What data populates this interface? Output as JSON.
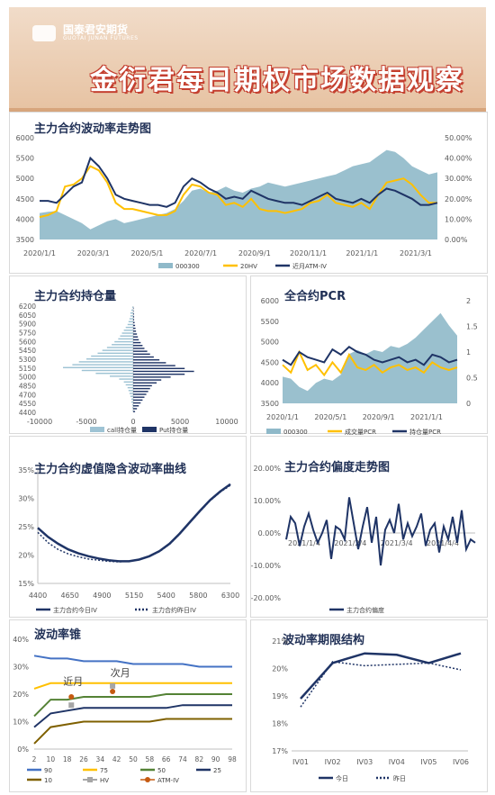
{
  "header": {
    "logo_text": "国泰君安期货",
    "logo_sub": "GUOTAI JUNAN FUTURES",
    "title": "金衍君每日期权市场数据观察"
  },
  "colors": {
    "navy": "#1f3466",
    "gold": "#ffc000",
    "teal": "#8fb9c9",
    "lightblue": "#9ec3d4",
    "gray": "#a6a6a6",
    "orange": "#c55a11",
    "olive": "#7f6000",
    "green": "#548235",
    "blue": "#4472c4",
    "darkgray": "#7f7f7f"
  },
  "chart_data": [
    {
      "id": "vol-trend",
      "type": "line",
      "title": "主力合约波动率走势图",
      "x_ticks": [
        "2020/1/1",
        "2020/3/1",
        "2020/5/1",
        "2020/7/1",
        "2020/9/1",
        "2020/11/1",
        "2021/1/1",
        "2021/3/1"
      ],
      "y_left_ticks": [
        "3500",
        "4000",
        "4500",
        "5000",
        "5500",
        "6000"
      ],
      "y_left_range": [
        3500,
        6000
      ],
      "y_right_ticks": [
        "0.00%",
        "10.00%",
        "20.00%",
        "30.00%",
        "40.00%",
        "50.00%"
      ],
      "y_right_range": [
        0,
        0.5
      ],
      "legend": [
        "000300",
        "20HV",
        "近月ATM-IV"
      ],
      "series_000300": [
        4150,
        4180,
        4200,
        4100,
        4000,
        3900,
        3750,
        3850,
        3950,
        4000,
        3900,
        3950,
        4000,
        4050,
        4100,
        4150,
        4250,
        4450,
        4700,
        4750,
        4650,
        4700,
        4800,
        4700,
        4650,
        4750,
        4800,
        4900,
        4850,
        4800,
        4850,
        4900,
        4950,
        5000,
        5050,
        5100,
        5200,
        5300,
        5350,
        5400,
        5550,
        5700,
        5650,
        5500,
        5300,
        5200,
        5100,
        5150
      ],
      "series_20hv": [
        0.11,
        0.12,
        0.14,
        0.26,
        0.27,
        0.3,
        0.36,
        0.34,
        0.28,
        0.18,
        0.15,
        0.15,
        0.14,
        0.13,
        0.12,
        0.12,
        0.14,
        0.22,
        0.27,
        0.26,
        0.23,
        0.22,
        0.17,
        0.18,
        0.16,
        0.2,
        0.15,
        0.14,
        0.14,
        0.13,
        0.14,
        0.15,
        0.18,
        0.19,
        0.22,
        0.18,
        0.17,
        0.16,
        0.18,
        0.15,
        0.22,
        0.28,
        0.29,
        0.3,
        0.27,
        0.22,
        0.18,
        0.18
      ],
      "series_atm_iv": [
        0.19,
        0.19,
        0.18,
        0.22,
        0.26,
        0.28,
        0.4,
        0.36,
        0.3,
        0.22,
        0.2,
        0.19,
        0.18,
        0.17,
        0.17,
        0.16,
        0.18,
        0.26,
        0.3,
        0.28,
        0.25,
        0.23,
        0.2,
        0.21,
        0.2,
        0.24,
        0.22,
        0.2,
        0.19,
        0.18,
        0.18,
        0.17,
        0.19,
        0.21,
        0.23,
        0.2,
        0.19,
        0.18,
        0.2,
        0.18,
        0.22,
        0.25,
        0.24,
        0.22,
        0.2,
        0.17,
        0.17,
        0.18
      ]
    },
    {
      "id": "open-interest",
      "type": "bar",
      "title": "主力合约持仓量",
      "categories": [
        "6200",
        "5900",
        "5600",
        "5300",
        "5000",
        "4700",
        "4450"
      ],
      "y_tick_labels": [
        "6200",
        "6050",
        "5900",
        "5750",
        "5600",
        "5450",
        "5300",
        "5150",
        "5000",
        "4850",
        "4700",
        "4550",
        "4400"
      ],
      "x_ticks": [
        "-10000",
        "-5000",
        "0",
        "5000",
        "10000"
      ],
      "x_range": [
        -10000,
        10000
      ],
      "strikes": [
        6200,
        6150,
        6100,
        6050,
        6000,
        5950,
        5900,
        5850,
        5800,
        5750,
        5700,
        5650,
        5600,
        5550,
        5500,
        5450,
        5400,
        5350,
        5300,
        5250,
        5200,
        5150,
        5100,
        5050,
        5000,
        4950,
        4900,
        4850,
        4800,
        4750,
        4700,
        4650,
        4600,
        4550,
        4500,
        4450,
        4400
      ],
      "call_oi": [
        -100,
        -200,
        -300,
        -300,
        -400,
        -500,
        -600,
        -800,
        -1000,
        -1200,
        -1400,
        -1600,
        -2000,
        -2300,
        -2800,
        -3300,
        -3800,
        -4500,
        -5000,
        -5800,
        -6500,
        -7500,
        -5500,
        -4000,
        -2500,
        -1500,
        -1000,
        -800,
        -600,
        -500,
        -400,
        -300,
        -200,
        -200,
        -100,
        -100,
        -50
      ],
      "put_oi": [
        50,
        50,
        80,
        100,
        100,
        150,
        200,
        250,
        300,
        400,
        500,
        600,
        800,
        1000,
        1200,
        1500,
        1800,
        2200,
        2800,
        3500,
        4500,
        5500,
        6500,
        5500,
        4000,
        3000,
        2500,
        2000,
        1800,
        1600,
        1400,
        1200,
        1000,
        800,
        600,
        400,
        200
      ],
      "legend": [
        "call持仓量",
        "Put持仓量"
      ]
    },
    {
      "id": "pcr",
      "type": "line",
      "title": "全合约PCR",
      "x_ticks": [
        "2020/1/1",
        "2020/5/1",
        "2020/9/1",
        "2021/1/1"
      ],
      "y_left_ticks": [
        "3500",
        "4000",
        "4500",
        "5000",
        "5500",
        "6000"
      ],
      "y_left_range": [
        3500,
        6000
      ],
      "y_right_ticks": [
        "0",
        "0.5",
        "1",
        "1.5",
        "2"
      ],
      "y_right_range": [
        0,
        2
      ],
      "legend": [
        "000300",
        "成交量PCR",
        "持仓量PCR"
      ],
      "series_000300": [
        4150,
        4100,
        3900,
        3800,
        4000,
        4100,
        4050,
        4200,
        4700,
        4800,
        4700,
        4800,
        4750,
        4900,
        4850,
        4950,
        5100,
        5300,
        5500,
        5700,
        5400,
        5150
      ],
      "series_vol_pcr": [
        0.75,
        0.6,
        1.0,
        0.65,
        0.75,
        0.55,
        0.8,
        0.6,
        0.95,
        0.7,
        0.65,
        0.75,
        0.6,
        0.7,
        0.75,
        0.65,
        0.7,
        0.6,
        0.8,
        0.7,
        0.65,
        0.7
      ],
      "series_oi_pcr": [
        0.85,
        0.75,
        1.0,
        0.9,
        0.85,
        0.8,
        1.05,
        0.95,
        1.1,
        1.0,
        0.95,
        0.85,
        0.8,
        0.85,
        0.9,
        0.8,
        0.85,
        0.75,
        0.95,
        0.9,
        0.8,
        0.85
      ]
    },
    {
      "id": "iv-smile",
      "type": "line",
      "title": "主力合约虚值隐含波动率曲线",
      "x_ticks": [
        "4400",
        "4650",
        "4900",
        "5150",
        "5400",
        "5800",
        "6300"
      ],
      "y_ticks": [
        "15%",
        "20%",
        "25%",
        "30%",
        "35%"
      ],
      "y_range": [
        0.15,
        0.35
      ],
      "x": [
        4400,
        4500,
        4600,
        4700,
        4800,
        4900,
        5000,
        5100,
        5200,
        5300,
        5400,
        5500,
        5600,
        5700,
        5800,
        5900,
        6000,
        6100,
        6200,
        6300
      ],
      "today": [
        0.248,
        0.232,
        0.22,
        0.21,
        0.203,
        0.198,
        0.194,
        0.191,
        0.189,
        0.189,
        0.192,
        0.198,
        0.207,
        0.22,
        0.238,
        0.258,
        0.278,
        0.297,
        0.312,
        0.325
      ],
      "yesterday": [
        0.24,
        0.222,
        0.21,
        0.202,
        0.197,
        0.193,
        0.191,
        0.189,
        0.188,
        0.189,
        0.192,
        0.198,
        0.206,
        0.219,
        0.237,
        0.257,
        0.277,
        0.296,
        0.311,
        0.323
      ],
      "legend": [
        "主力合约今日IV",
        "主力合约昨日IV"
      ]
    },
    {
      "id": "bias",
      "type": "line",
      "title": "主力合约偏度走势图",
      "x_ticks": [
        "2021/1/4",
        "2021/2/4",
        "2021/3/4",
        "2021/4/4"
      ],
      "y_ticks": [
        "20.00%",
        "10.00%",
        "0.00%",
        "-10.00%",
        "-20.00%"
      ],
      "y_range": [
        -0.2,
        0.2
      ],
      "values": [
        -0.02,
        0.05,
        0.03,
        -0.04,
        0.02,
        0.06,
        0.01,
        -0.03,
        0.0,
        0.04,
        -0.08,
        0.02,
        0.01,
        -0.02,
        0.11,
        0.03,
        -0.05,
        0.02,
        0.08,
        -0.03,
        0.05,
        -0.1,
        0.01,
        0.04,
        0.0,
        0.09,
        -0.02,
        0.03,
        -0.01,
        0.02,
        0.06,
        -0.04,
        0.01,
        0.03,
        -0.06,
        0.02,
        -0.02,
        0.05,
        -0.03,
        0.07,
        -0.05,
        -0.02,
        -0.03
      ],
      "legend": [
        "主力合约偏度"
      ]
    },
    {
      "id": "vol-cone",
      "type": "line",
      "title": "波动率锥",
      "x_ticks": [
        "2",
        "10",
        "18",
        "26",
        "34",
        "42",
        "50",
        "58",
        "66",
        "74",
        "82",
        "90",
        "98"
      ],
      "y_ticks": [
        "0%",
        "10%",
        "20%",
        "30%",
        "40%"
      ],
      "y_range": [
        0,
        0.4
      ],
      "legend": [
        "90",
        "75",
        "50",
        "25",
        "10",
        "HV",
        "ATM-IV"
      ],
      "annotations": [
        "近月",
        "次月"
      ],
      "p90": [
        0.34,
        0.33,
        0.33,
        0.32,
        0.32,
        0.32,
        0.31,
        0.31,
        0.31,
        0.31,
        0.3,
        0.3,
        0.3
      ],
      "p75": [
        0.22,
        0.24,
        0.24,
        0.24,
        0.24,
        0.24,
        0.24,
        0.24,
        0.24,
        0.24,
        0.24,
        0.24,
        0.24
      ],
      "p50": [
        0.12,
        0.18,
        0.18,
        0.19,
        0.19,
        0.19,
        0.19,
        0.19,
        0.2,
        0.2,
        0.2,
        0.2,
        0.2
      ],
      "p25": [
        0.08,
        0.13,
        0.14,
        0.15,
        0.15,
        0.15,
        0.15,
        0.15,
        0.15,
        0.16,
        0.16,
        0.16,
        0.16
      ],
      "p10": [
        0.02,
        0.08,
        0.09,
        0.1,
        0.1,
        0.1,
        0.1,
        0.1,
        0.11,
        0.11,
        0.11,
        0.11,
        0.11
      ],
      "hv_points": [
        [
          20,
          0.16
        ],
        [
          40,
          0.23
        ]
      ],
      "atm_points": [
        [
          20,
          0.19
        ],
        [
          40,
          0.21
        ]
      ]
    },
    {
      "id": "term-structure",
      "type": "line",
      "title": "波动率期限结构",
      "categories": [
        "IV01",
        "IV02",
        "IV03",
        "IV04",
        "IV05",
        "IV06"
      ],
      "y_ticks": [
        "21%",
        "20%",
        "19%",
        "18%",
        "17%"
      ],
      "y_range": [
        0.17,
        0.21
      ],
      "today": [
        0.189,
        0.202,
        0.2055,
        0.205,
        0.202,
        0.2055
      ],
      "yesterday": [
        0.186,
        0.2025,
        0.201,
        0.2015,
        0.202,
        0.1995
      ],
      "legend": [
        "今日",
        "昨日"
      ]
    }
  ]
}
